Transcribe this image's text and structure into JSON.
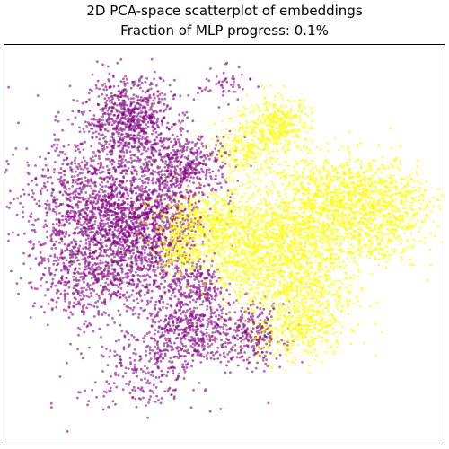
{
  "chart_data": {
    "type": "scatter",
    "title": "2D PCA-space scatterplot of embeddings",
    "subtitle": "Fraction of MLP progress: 0.1%",
    "xlabel": "",
    "ylabel": "",
    "xlim": [
      -1.0,
      1.0
    ],
    "ylim": [
      -1.0,
      1.0
    ],
    "axes_ticks": false,
    "grid": false,
    "legend": "none",
    "series": [
      {
        "color": "#800080",
        "opacity": 0.6,
        "clusters": [
          {
            "cx": -0.43,
            "cy": 0.63,
            "sx": 0.1,
            "sy": 0.1,
            "n": 700
          },
          {
            "cx": -0.18,
            "cy": 0.4,
            "sx": 0.11,
            "sy": 0.08,
            "n": 450
          },
          {
            "cx": -0.58,
            "cy": 0.15,
            "sx": 0.17,
            "sy": 0.2,
            "n": 1500
          },
          {
            "cx": -0.33,
            "cy": 0.13,
            "sx": 0.12,
            "sy": 0.1,
            "n": 600
          },
          {
            "cx": -0.4,
            "cy": -0.1,
            "sx": 0.13,
            "sy": 0.14,
            "n": 500
          },
          {
            "cx": -0.68,
            "cy": -0.2,
            "sx": 0.1,
            "sy": 0.1,
            "n": 200
          },
          {
            "cx": -0.12,
            "cy": -0.2,
            "sx": 0.06,
            "sy": 0.06,
            "n": 160
          },
          {
            "cx": -0.15,
            "cy": -0.42,
            "sx": 0.1,
            "sy": 0.1,
            "n": 500
          },
          {
            "cx": 0.13,
            "cy": -0.45,
            "sx": 0.07,
            "sy": 0.08,
            "n": 260
          },
          {
            "cx": -0.35,
            "cy": -0.58,
            "sx": 0.13,
            "sy": 0.08,
            "n": 150
          },
          {
            "cx": -0.4,
            "cy": -0.72,
            "sx": 0.14,
            "sy": 0.08,
            "n": 90
          },
          {
            "cx": 0.0,
            "cy": 0.8,
            "sx": 0.06,
            "sy": 0.04,
            "n": 50
          }
        ]
      },
      {
        "color": "#ffff00",
        "opacity": 0.6,
        "clusters": [
          {
            "cx": -0.05,
            "cy": 0.1,
            "sx": 0.14,
            "sy": 0.08,
            "n": 700
          },
          {
            "cx": 0.25,
            "cy": 0.6,
            "sx": 0.07,
            "sy": 0.07,
            "n": 350
          },
          {
            "cx": 0.1,
            "cy": 0.48,
            "sx": 0.07,
            "sy": 0.08,
            "n": 250
          },
          {
            "cx": 0.55,
            "cy": 0.25,
            "sx": 0.17,
            "sy": 0.1,
            "n": 900
          },
          {
            "cx": 0.3,
            "cy": 0.05,
            "sx": 0.14,
            "sy": 0.12,
            "n": 800
          },
          {
            "cx": 0.35,
            "cy": -0.25,
            "sx": 0.12,
            "sy": 0.14,
            "n": 650
          },
          {
            "cx": 0.08,
            "cy": -0.1,
            "sx": 0.09,
            "sy": 0.09,
            "n": 300
          },
          {
            "cx": 0.65,
            "cy": 0.05,
            "sx": 0.12,
            "sy": 0.09,
            "n": 300
          },
          {
            "cx": 0.8,
            "cy": 0.2,
            "sx": 0.07,
            "sy": 0.09,
            "n": 150
          },
          {
            "cx": -0.2,
            "cy": -0.05,
            "sx": 0.05,
            "sy": 0.05,
            "n": 140
          },
          {
            "cx": 0.35,
            "cy": -0.45,
            "sx": 0.1,
            "sy": 0.07,
            "n": 200
          }
        ]
      }
    ]
  }
}
